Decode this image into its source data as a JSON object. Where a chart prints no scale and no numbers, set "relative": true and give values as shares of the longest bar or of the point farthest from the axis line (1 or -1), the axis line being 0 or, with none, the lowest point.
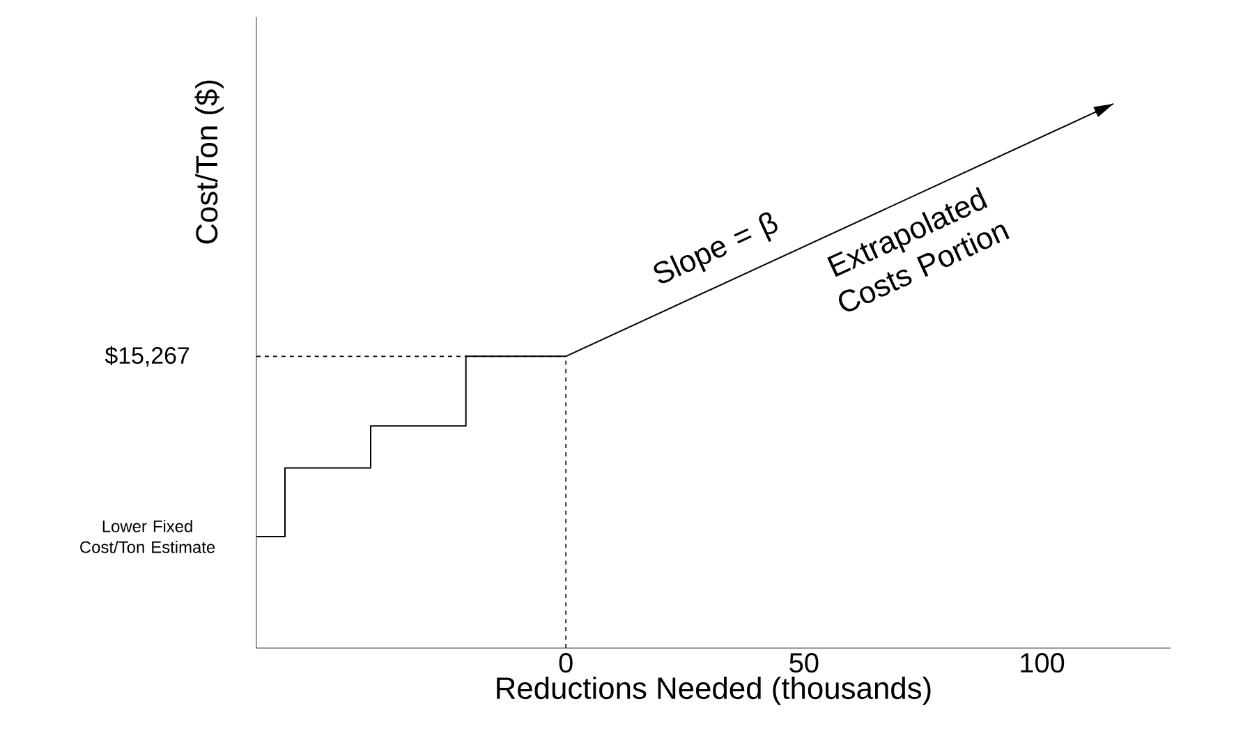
{
  "chart_data": {
    "type": "step",
    "relative": true,
    "xlabel": "Reductions Needed (thousands)",
    "ylabel": "Cost/Ton ($)",
    "xlim": [
      -65,
      127
    ],
    "xticks": [
      0,
      50,
      100
    ],
    "series": [
      {
        "type": "step",
        "color": "#000000",
        "x": [
          -65,
          -59,
          -41,
          -21,
          0
        ],
        "values": [
          0.205,
          0.331,
          0.408,
          0.536,
          0.536
        ]
      },
      {
        "type": "line",
        "color": "#000000",
        "x": [
          0,
          115
        ],
        "values": [
          0.536,
          1.0
        ]
      }
    ],
    "ref_lines": [
      {
        "axis": "y",
        "value": 0.536,
        "color": "#000000",
        "line_style": "dashed"
      },
      {
        "axis": "x",
        "value": 0,
        "color": "#000000",
        "line_style": "dashed"
      }
    ],
    "annotations": [
      {
        "text": "Lower Fixed Cost/Ton Estimate",
        "x": -65,
        "y": 0.205
      },
      {
        "text": "$15,267",
        "x": -65,
        "y": 0.536
      },
      "Slope = β",
      "Extrapolated Costs Portion"
    ],
    "grid": false
  }
}
